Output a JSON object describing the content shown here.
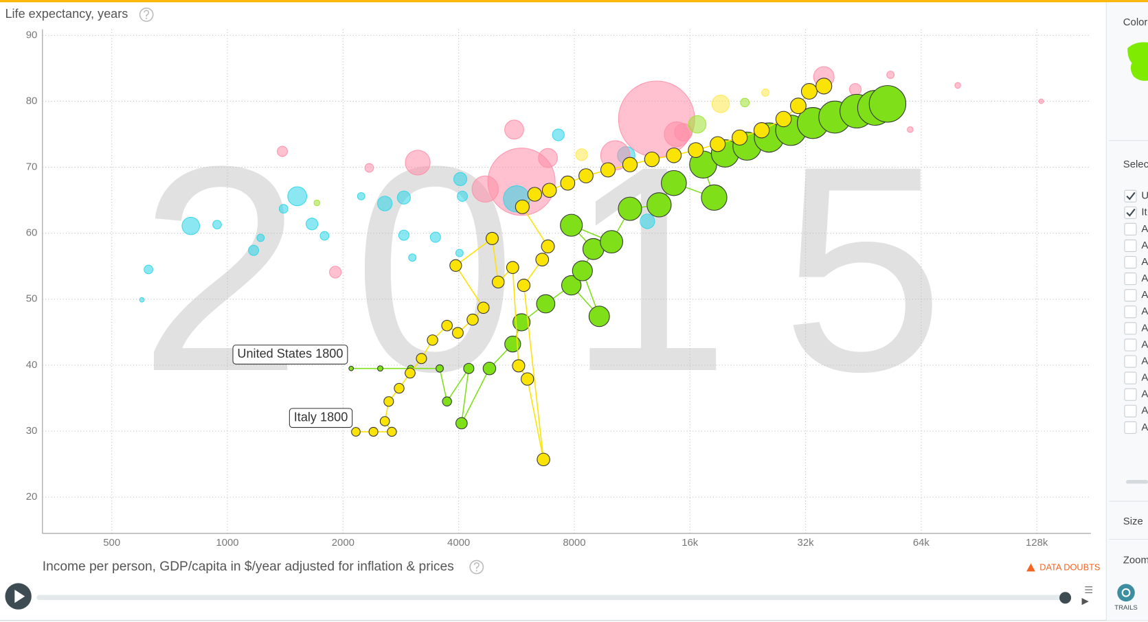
{
  "chart_data": {
    "type": "bubble",
    "year": "2015",
    "y_label": "Life expectancy, years",
    "x_label": "Income per person, GDP/capita in $/year adjusted for inflation & prices",
    "log_x": true,
    "grid": true,
    "xlim": [
      330,
      177000
    ],
    "ylim": [
      14.5,
      90.9
    ],
    "xticks": [
      500,
      1000,
      2000,
      4000,
      8000,
      {
        "value": 16000,
        "label": "16k"
      },
      {
        "value": 32000,
        "label": "32k"
      },
      {
        "value": 64000,
        "label": "64k"
      },
      {
        "value": 128000,
        "label": "128k"
      }
    ],
    "yticks": [
      20,
      30,
      40,
      50,
      60,
      70,
      80,
      90
    ],
    "opacity": 0.55,
    "series": [
      {
        "x": [
          13100,
          5830,
          5660,
          35710,
          3130,
          4690,
          5580,
          6830,
          10920,
          10230,
          14780,
          15380,
          16720,
          19240,
          1520,
          803,
          2570,
          2880,
          1390,
          1910,
          1170,
          3480,
          2880,
          1660,
          1790,
          623,
          940,
          4040,
          4090,
          7270,
          8360,
          12400,
          22240,
          25150,
          43110,
          53230,
          59920,
          79690,
          131400,
          2340,
          2230,
          3030,
          4020,
          1400,
          1220,
          599,
          1710
        ],
        "values": [
          77.3,
          67.8,
          65.2,
          83.7,
          70.7,
          66.7,
          75.7,
          71.4,
          71.8,
          71.8,
          75.0,
          75.3,
          76.5,
          79.6,
          65.6,
          61.1,
          64.5,
          65.4,
          72.4,
          54.1,
          57.4,
          59.4,
          59.7,
          61.4,
          59.6,
          54.5,
          61.3,
          68.2,
          65.6,
          74.9,
          71.9,
          61.8,
          79.8,
          81.3,
          81.8,
          84.0,
          75.7,
          82.4,
          80.0,
          69.9,
          65.6,
          56.3,
          57.0,
          63.7,
          59.3,
          49.9,
          64.6
        ],
        "sizes": [
          1380,
          1080,
          165,
          100,
          147,
          165,
          86,
          86,
          73,
          204,
          147,
          73,
          73,
          73,
          86,
          73,
          51,
          41,
          25,
          33,
          25,
          25,
          25,
          33,
          18,
          18,
          18,
          41,
          25,
          33,
          33,
          51,
          18,
          13,
          33,
          13,
          8,
          8,
          5,
          18,
          13,
          13,
          13,
          18,
          13,
          5,
          8
        ],
        "colors": [
          "#ff8ea8",
          "#ff8ea8",
          "#2cd5e8",
          "#ff8ea8",
          "#ff8ea8",
          "#ff8ea8",
          "#ff8ea8",
          "#ff8ea8",
          "#2cd5e8",
          "#ff8ea8",
          "#ff8ea8",
          "#ff8ea8",
          "#9be22e",
          "#ffe84d",
          "#2cd5e8",
          "#2cd5e8",
          "#2cd5e8",
          "#2cd5e8",
          "#ff8ea8",
          "#ff8ea8",
          "#2cd5e8",
          "#2cd5e8",
          "#2cd5e8",
          "#2cd5e8",
          "#2cd5e8",
          "#2cd5e8",
          "#2cd5e8",
          "#2cd5e8",
          "#2cd5e8",
          "#2cd5e8",
          "#ffe84d",
          "#2cd5e8",
          "#9be22e",
          "#ffe84d",
          "#ff8ea8",
          "#ff8ea8",
          "#ff8ea8",
          "#ff8ea8",
          "#ff8ea8",
          "#ff8ea8",
          "#2cd5e8",
          "#2cd5e8",
          "#2cd5e8",
          "#2cd5e8",
          "#2cd5e8",
          "#2cd5e8",
          "#9be22e"
        ]
      },
      {
        "trail": true,
        "color": "#7fe01a",
        "x": [
          2100,
          2500,
          3000,
          3570,
          3730,
          4250,
          4070,
          4810,
          5530,
          5830,
          6740,
          7860,
          9290,
          8400,
          8970,
          7860,
          10000,
          11170,
          13300,
          14530,
          18500,
          17320,
          19750,
          22530,
          25700,
          29300,
          33430,
          38140,
          43510,
          48550,
          52310
        ],
        "values": [
          39.5,
          39.5,
          39.5,
          39.5,
          34.5,
          39.5,
          31.2,
          39.5,
          43.2,
          46.5,
          49.3,
          52.1,
          47.4,
          54.3,
          57.6,
          61.2,
          58.7,
          63.7,
          64.3,
          67.6,
          65.4,
          70.4,
          72.1,
          73.2,
          74.5,
          75.6,
          76.7,
          77.6,
          78.5,
          79.0,
          79.6
        ],
        "sizes": [
          5,
          7,
          10,
          13,
          20,
          25,
          31,
          38,
          60,
          70,
          80,
          90,
          100,
          95,
          105,
          115,
          120,
          130,
          140,
          150,
          155,
          175,
          180,
          190,
          205,
          220,
          230,
          245,
          270,
          290,
          320
        ]
      },
      {
        "trail": true,
        "color": "#fbe305",
        "x": [
          2160,
          2400,
          2680,
          2570,
          2630,
          2800,
          2990,
          3200,
          3420,
          3730,
          3980,
          4350,
          4640,
          3930,
          4890,
          5070,
          5530,
          5730,
          6040,
          6650,
          5910,
          6600,
          6830,
          5860,
          6310,
          6890,
          7690,
          8580,
          9790,
          11170,
          12740,
          14530,
          16570,
          18900,
          21560,
          24590,
          28050,
          30630,
          32720,
          35710
        ],
        "values": [
          29.9,
          29.9,
          29.9,
          31.5,
          34.5,
          36.5,
          38.8,
          41.0,
          43.8,
          46.0,
          44.9,
          46.9,
          48.7,
          55.1,
          59.2,
          52.6,
          54.8,
          39.9,
          37.9,
          25.7,
          52.1,
          56.0,
          58.0,
          64.0,
          65.9,
          66.5,
          67.6,
          68.7,
          69.6,
          70.4,
          71.2,
          71.8,
          72.6,
          73.5,
          74.5,
          75.6,
          77.3,
          79.3,
          81.5,
          82.3
        ],
        "sizes": [
          18,
          19,
          20,
          21,
          22,
          23,
          24,
          25,
          26,
          27,
          28,
          30,
          31,
          33,
          36,
          34,
          35,
          36,
          37,
          38,
          37,
          39,
          40,
          45,
          46,
          47,
          48,
          48,
          49,
          50,
          51,
          52,
          53,
          54,
          55,
          56,
          57,
          58,
          59,
          60
        ]
      }
    ],
    "annotations": [
      {
        "text": "United States 1800"
      },
      {
        "text": "Italy 1800"
      }
    ]
  },
  "ui": {
    "data_doubts": "DATA DOUBTS",
    "sidebar": {
      "color_label": "Color",
      "select_label": "Selec",
      "items": [
        "U",
        "It",
        "A",
        "A",
        "A",
        "A",
        "A",
        "A",
        "A",
        "A",
        "A",
        "A",
        "A",
        "A",
        "A"
      ],
      "checked": [
        true,
        true,
        false,
        false,
        false,
        false,
        false,
        false,
        false,
        false,
        false,
        false,
        false,
        false,
        false
      ],
      "size_label": "Size",
      "zoom_label": "Zoom",
      "trails": "TRAILS"
    }
  }
}
